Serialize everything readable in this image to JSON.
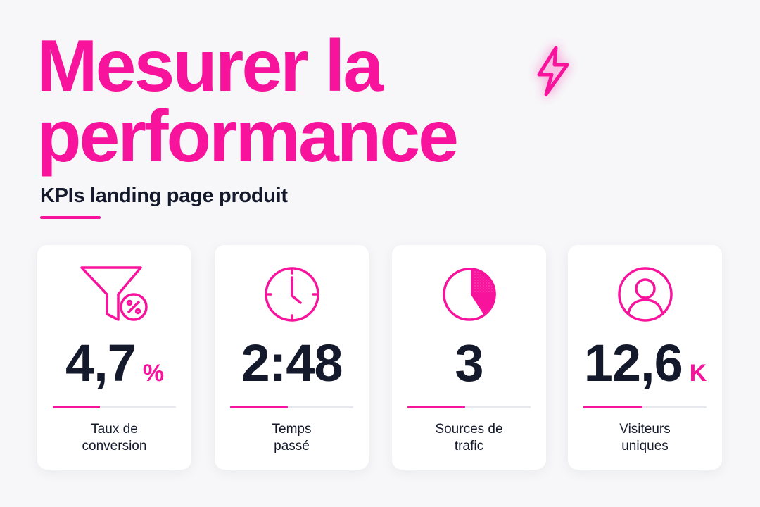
{
  "header": {
    "title_line1": "Mesurer la",
    "title_line2": "performance",
    "subtitle": "KPIs landing page produit"
  },
  "cards": [
    {
      "value": "4,7",
      "unit": "%",
      "label": "Taux de\nconversion"
    },
    {
      "value": "2:48",
      "label": "Temps\npassé"
    },
    {
      "value": "3",
      "label": "Sources de\ntrafic"
    },
    {
      "value": "12,6",
      "unit": "K",
      "label": "Visiteurs\nuniques"
    }
  ]
}
